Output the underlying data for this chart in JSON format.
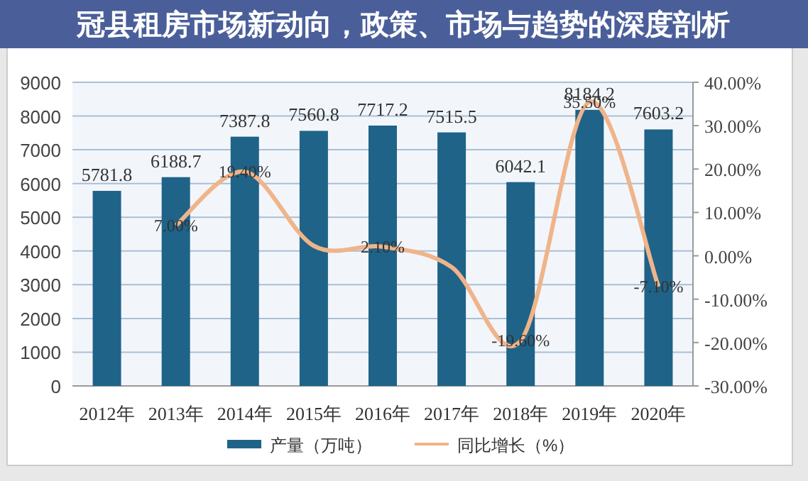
{
  "chart_data": {
    "type": "bar",
    "title": "冠县租房市场新动向，政策、市场与趋势的深度剖析",
    "categories": [
      "2012年",
      "2013年",
      "2014年",
      "2015年",
      "2016年",
      "2017年",
      "2018年",
      "2019年",
      "2020年"
    ],
    "series": [
      {
        "name": "产量（万吨）",
        "color": "#1f6388",
        "values": [
          5781.8,
          6188.7,
          7387.8,
          7560.8,
          7717.2,
          7515.5,
          6042.1,
          8184.2,
          7603.2
        ],
        "data_labels": true
      },
      {
        "name": "同比增长（%）",
        "type": "line",
        "axis": "y2",
        "color": "#f0b48a",
        "values": [
          null,
          7.0,
          19.4,
          2.3,
          2.1,
          -2.6,
          -19.6,
          35.5,
          -7.1
        ],
        "value_labels": [
          null,
          "7.00%",
          "19.40%",
          null,
          "2.10%",
          null,
          "-19.60%",
          "35.50%",
          "-7.10%"
        ]
      }
    ],
    "ylim": [
      0,
      9000
    ],
    "yticks": [
      0,
      1000,
      2000,
      3000,
      4000,
      5000,
      6000,
      7000,
      8000,
      9000
    ],
    "y2lim": [
      -30,
      40
    ],
    "y2ticks": [
      {
        "value": -30,
        "label": "-30.00%"
      },
      {
        "value": -20,
        "label": "-20.00%"
      },
      {
        "value": -10,
        "label": "-10.00%"
      },
      {
        "value": 0,
        "label": "0.00%"
      },
      {
        "value": 10,
        "label": "10.00%"
      },
      {
        "value": 20,
        "label": "20.00%"
      },
      {
        "value": 30,
        "label": "30.00%"
      },
      {
        "value": 40,
        "label": "40.00%"
      }
    ],
    "grid": "y",
    "legend": "bottom"
  }
}
